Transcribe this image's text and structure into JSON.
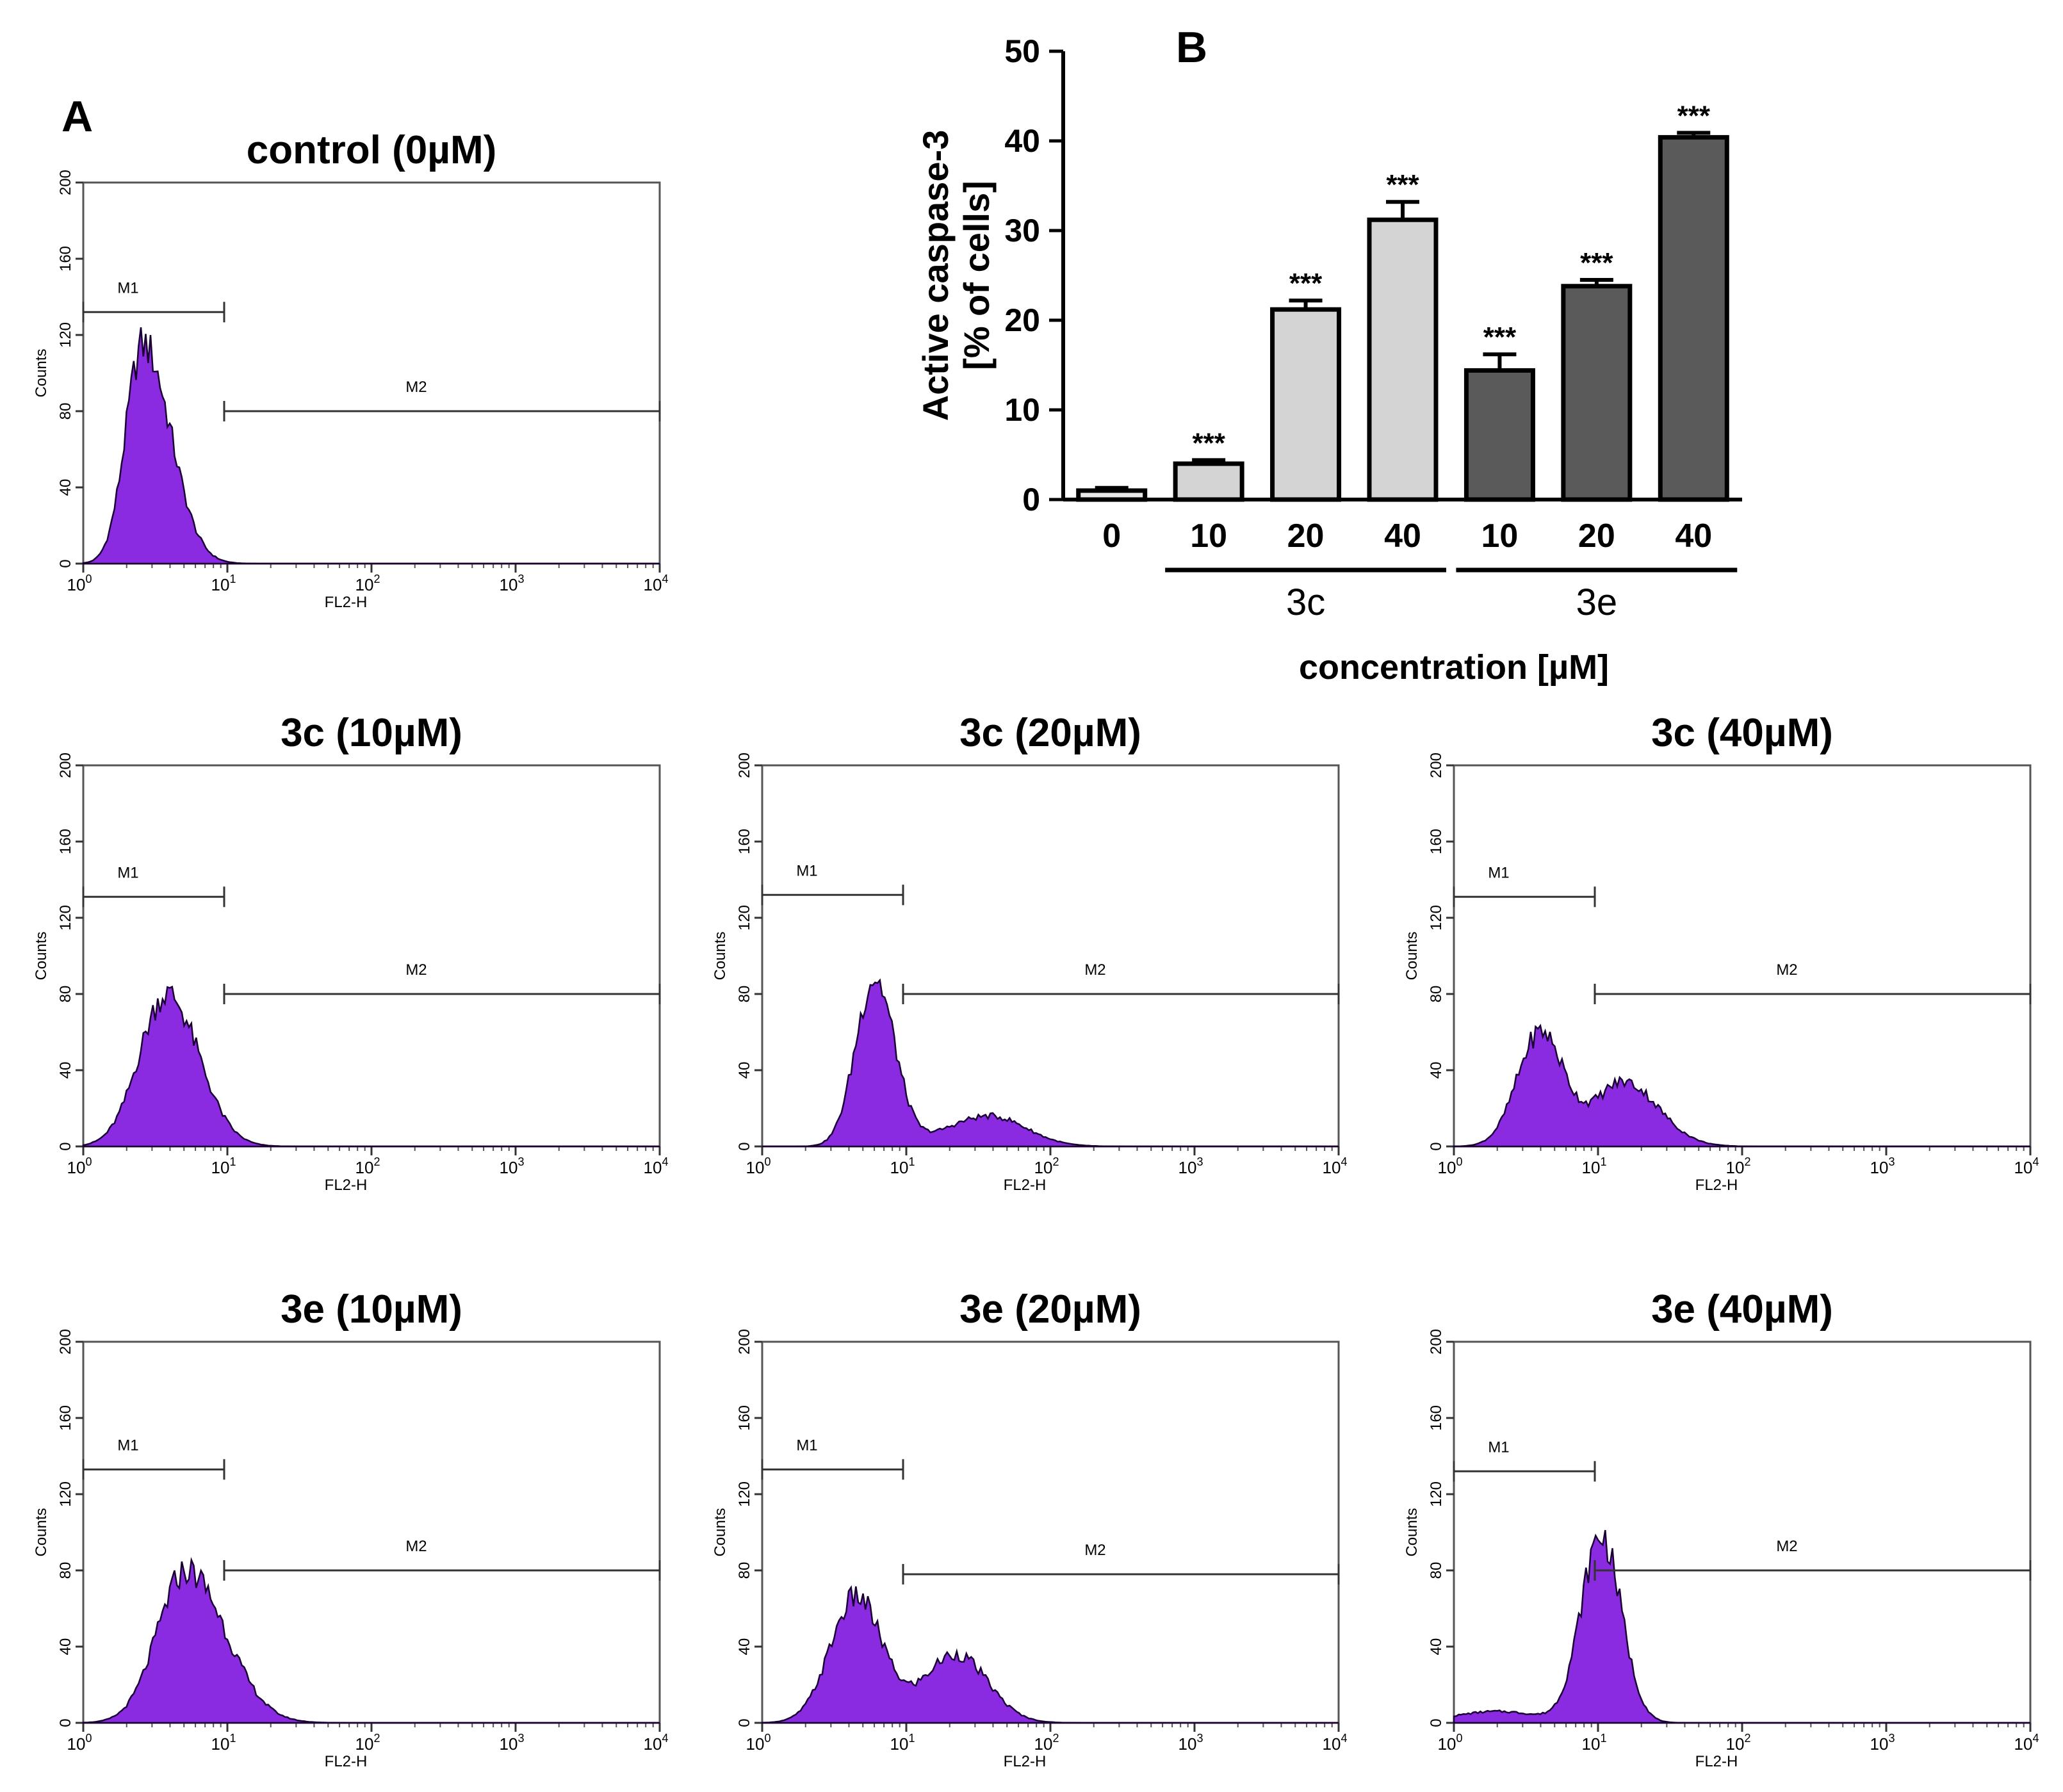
{
  "panel_letters": {
    "a": "A",
    "b": "B"
  },
  "colors": {
    "histogram_fill": "#8a2be2",
    "histogram_stroke": "#1a0033",
    "bar_3c": "#d4d4d4",
    "bar_3e": "#5a5a5a",
    "control_bar": "#e8e8e8"
  },
  "chart_data": [
    {
      "type": "bar",
      "panel": "B",
      "title": "",
      "ylabel_line1": "Active caspase-3",
      "ylabel_line2": "[% of cells]",
      "xlabel": "concentration [µM]",
      "ylim": [
        0,
        50
      ],
      "yticks": [
        "0",
        "10",
        "20",
        "30",
        "40",
        "50"
      ],
      "categories": [
        "0",
        "10",
        "20",
        "40",
        "10",
        "20",
        "40"
      ],
      "groups": [
        "control",
        "3c",
        "3c",
        "3c",
        "3e",
        "3e",
        "3e"
      ],
      "group_labels": [
        "3c",
        "3e"
      ],
      "values": [
        1,
        4,
        21.2,
        31.2,
        14.4,
        23.8,
        40.4
      ],
      "errors": [
        0.3,
        0.4,
        1.0,
        2.0,
        1.8,
        0.7,
        0.5
      ],
      "significance": [
        "",
        "***",
        "***",
        "***",
        "***",
        "***",
        "***"
      ]
    },
    {
      "type": "histogram",
      "panel": "A",
      "title": "control (0µM)",
      "xlabel": "FL2-H",
      "ylabel": "Counts",
      "xscale": "log",
      "xlim": [
        1,
        10000
      ],
      "ylim": [
        0,
        200
      ],
      "xticks_exp": [
        "0",
        "1",
        "2",
        "3",
        "4"
      ],
      "x_base": "10",
      "yticks": [
        "0",
        "40",
        "80",
        "120",
        "160",
        "200"
      ],
      "gates": [
        {
          "label": "M1",
          "range": [
            1,
            9.5
          ],
          "y": 132
        },
        {
          "label": "M2",
          "range": [
            9.5,
            10000
          ],
          "y": 80
        }
      ],
      "peaks": [
        {
          "center": 2.6,
          "height": 115,
          "wl": 0.12,
          "wr": 0.19
        }
      ]
    },
    {
      "type": "histogram",
      "panel": "A",
      "title": "3c (10µM)",
      "xlabel": "FL2-H",
      "ylabel": "Counts",
      "xscale": "log",
      "xlim": [
        1,
        10000
      ],
      "ylim": [
        0,
        200
      ],
      "xticks_exp": [
        "0",
        "1",
        "2",
        "3",
        "4"
      ],
      "x_base": "10",
      "yticks": [
        "0",
        "40",
        "80",
        "120",
        "160",
        "200"
      ],
      "gates": [
        {
          "label": "M1",
          "range": [
            1,
            9.5
          ],
          "y": 131
        },
        {
          "label": "M2",
          "range": [
            9.5,
            10000
          ],
          "y": 80
        }
      ],
      "peaks": [
        {
          "center": 3.8,
          "height": 80,
          "wl": 0.19,
          "wr": 0.22
        }
      ]
    },
    {
      "type": "histogram",
      "panel": "A",
      "title": "3c (20µM)",
      "xlabel": "FL2-H",
      "ylabel": "Counts",
      "xscale": "log",
      "xlim": [
        1,
        10000
      ],
      "ylim": [
        0,
        200
      ],
      "xticks_exp": [
        "0",
        "1",
        "2",
        "3",
        "4"
      ],
      "x_base": "10",
      "yticks": [
        "0",
        "40",
        "80",
        "120",
        "160",
        "200"
      ],
      "gates": [
        {
          "label": "M1",
          "range": [
            1,
            9.5
          ],
          "y": 132
        },
        {
          "label": "M2",
          "range": [
            9.5,
            10000
          ],
          "y": 80
        }
      ],
      "peaks": [
        {
          "center": 6.0,
          "height": 88,
          "wl": 0.13,
          "wr": 0.14
        },
        {
          "center": 38,
          "height": 16,
          "wl": 0.3,
          "wr": 0.25
        }
      ]
    },
    {
      "type": "histogram",
      "panel": "A",
      "title": "3c (40µM)",
      "xlabel": "FL2-H",
      "ylabel": "Counts",
      "xscale": "log",
      "xlim": [
        1,
        10000
      ],
      "ylim": [
        0,
        200
      ],
      "xticks_exp": [
        "0",
        "1",
        "2",
        "3",
        "4"
      ],
      "x_base": "10",
      "yticks": [
        "0",
        "40",
        "80",
        "120",
        "160",
        "200"
      ],
      "gates": [
        {
          "label": "M1",
          "range": [
            1,
            9.5
          ],
          "y": 131
        },
        {
          "label": "M2",
          "range": [
            9.5,
            10000
          ],
          "y": 80
        }
      ],
      "peaks": [
        {
          "center": 4.0,
          "height": 60,
          "wl": 0.16,
          "wr": 0.16
        },
        {
          "center": 15,
          "height": 34,
          "wl": 0.2,
          "wr": 0.24
        }
      ]
    },
    {
      "type": "histogram",
      "panel": "A",
      "title": "3e (10µM)",
      "xlabel": "FL2-H",
      "ylabel": "Counts",
      "xscale": "log",
      "xlim": [
        1,
        10000
      ],
      "ylim": [
        0,
        200
      ],
      "xticks_exp": [
        "0",
        "1",
        "2",
        "3",
        "4"
      ],
      "x_base": "10",
      "yticks": [
        "0",
        "40",
        "80",
        "120",
        "160",
        "200"
      ],
      "gates": [
        {
          "label": "M1",
          "range": [
            1,
            9.5
          ],
          "y": 133
        },
        {
          "label": "M2",
          "range": [
            9.5,
            10000
          ],
          "y": 80
        }
      ],
      "peaks": [
        {
          "center": 5.2,
          "height": 80,
          "wl": 0.2,
          "wr": 0.27
        }
      ]
    },
    {
      "type": "histogram",
      "panel": "A",
      "title": "3e (20µM)",
      "xlabel": "FL2-H",
      "ylabel": "Counts",
      "xscale": "log",
      "xlim": [
        1,
        10000
      ],
      "ylim": [
        0,
        200
      ],
      "xticks_exp": [
        "0",
        "1",
        "2",
        "3",
        "4"
      ],
      "x_base": "10",
      "yticks": [
        "0",
        "40",
        "80",
        "120",
        "160",
        "200"
      ],
      "gates": [
        {
          "label": "M1",
          "range": [
            1,
            9.5
          ],
          "y": 133
        },
        {
          "label": "M2",
          "range": [
            9.5,
            10000
          ],
          "y": 78
        }
      ],
      "peaks": [
        {
          "center": 4.5,
          "height": 66,
          "wl": 0.18,
          "wr": 0.18
        },
        {
          "center": 22,
          "height": 36,
          "wl": 0.22,
          "wr": 0.22
        }
      ]
    },
    {
      "type": "histogram",
      "panel": "A",
      "title": "3e (40µM)",
      "xlabel": "FL2-H",
      "ylabel": "Counts",
      "xscale": "log",
      "xlim": [
        1,
        10000
      ],
      "ylim": [
        0,
        200
      ],
      "xticks_exp": [
        "0",
        "1",
        "2",
        "3",
        "4"
      ],
      "x_base": "10",
      "yticks": [
        "0",
        "40",
        "80",
        "120",
        "160",
        "200"
      ],
      "gates": [
        {
          "label": "M1",
          "range": [
            1,
            9.5
          ],
          "y": 132
        },
        {
          "label": "M2",
          "range": [
            9.5,
            10000
          ],
          "y": 80
        }
      ],
      "peaks": [
        {
          "center": 10.5,
          "height": 98,
          "wl": 0.14,
          "wr": 0.14
        },
        {
          "center": 2.0,
          "height": 6,
          "wl": 0.3,
          "wr": 0.3
        }
      ]
    }
  ]
}
